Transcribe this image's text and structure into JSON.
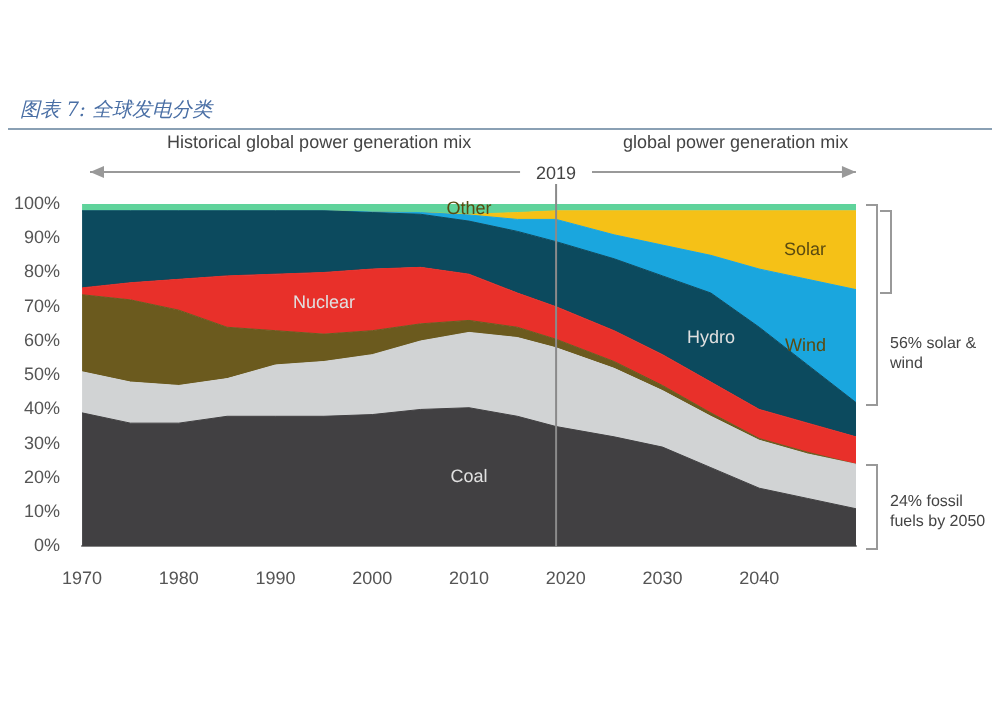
{
  "chart_data": {
    "type": "area",
    "stacked": true,
    "title": "图表 7: 全球发电分类",
    "x": [
      1970,
      1975,
      1980,
      1985,
      1990,
      1995,
      2000,
      2005,
      2010,
      2015,
      2019,
      2025,
      2030,
      2035,
      2040,
      2045,
      2050
    ],
    "xlim": [
      1970,
      2050
    ],
    "xticks": [
      1970,
      1980,
      1990,
      2000,
      2010,
      2020,
      2030,
      2040
    ],
    "ylim": [
      0,
      100
    ],
    "yticks": [
      {
        "value": 0,
        "label": "0%"
      },
      {
        "value": 10,
        "label": "10%"
      },
      {
        "value": 20,
        "label": "20%"
      },
      {
        "value": 30,
        "label": "30%"
      },
      {
        "value": 40,
        "label": "40%"
      },
      {
        "value": 50,
        "label": "50%"
      },
      {
        "value": 60,
        "label": "60%"
      },
      {
        "value": 70,
        "label": "70%"
      },
      {
        "value": 80,
        "label": "80%"
      },
      {
        "value": 90,
        "label": "90%"
      },
      {
        "value": 100,
        "label": "100%"
      }
    ],
    "grid": false,
    "legend": false,
    "series": [
      {
        "name": "Coal",
        "color": "#414042",
        "values": [
          39,
          36,
          36,
          38,
          38,
          38,
          38.5,
          40,
          40.5,
          38,
          35,
          32,
          29,
          23,
          17,
          14,
          11
        ]
      },
      {
        "color": "#d1d3d4",
        "values": [
          12,
          12,
          11,
          11,
          15,
          16,
          17.5,
          20,
          22,
          23,
          23,
          20,
          16.5,
          15,
          14,
          13,
          13
        ]
      },
      {
        "color": "#6b5a1e",
        "values": [
          22.5,
          24,
          22,
          15,
          10,
          8,
          7,
          5,
          3.5,
          3,
          2.5,
          2,
          1.5,
          1,
          0.5,
          0.5,
          0
        ]
      },
      {
        "name": "Nuclear",
        "color": "#e8302a",
        "values": [
          2,
          5,
          9,
          15,
          16.5,
          18,
          18,
          16.5,
          13.5,
          10,
          9.5,
          9,
          9,
          9,
          8.5,
          8.5,
          8
        ]
      },
      {
        "name": "Hydro",
        "color": "#0c4a5e",
        "values": [
          22.5,
          21,
          20,
          19,
          18.5,
          18,
          16.5,
          15.5,
          15.5,
          18,
          19,
          21,
          23,
          26,
          24,
          17,
          10
        ]
      },
      {
        "name": "Wind",
        "color": "#1aa6de",
        "values": [
          0,
          0,
          0,
          0,
          0,
          0,
          0.2,
          0.5,
          1.8,
          3.5,
          6.5,
          7,
          9,
          11,
          17,
          25,
          33
        ]
      },
      {
        "name": "Solar",
        "color": "#f5c117",
        "values": [
          0,
          0,
          0,
          0,
          0,
          0,
          0,
          0,
          0.2,
          2,
          2.5,
          7,
          10,
          13,
          17,
          20,
          23
        ]
      },
      {
        "name": "Other",
        "color": "#5fd39b",
        "values": [
          2,
          2,
          2,
          2,
          2,
          2,
          2.3,
          2.5,
          3,
          2.5,
          2,
          2,
          2,
          2,
          2,
          2,
          2
        ]
      }
    ],
    "ref_lines": [
      {
        "axis": "x",
        "value": 2019,
        "label": "2019",
        "color": "#8a8a8a"
      }
    ],
    "annotations": [
      "Historical global power generation mix",
      "global power generation mix",
      "56% solar & wind",
      "24% fossil fuels by 2050"
    ]
  }
}
